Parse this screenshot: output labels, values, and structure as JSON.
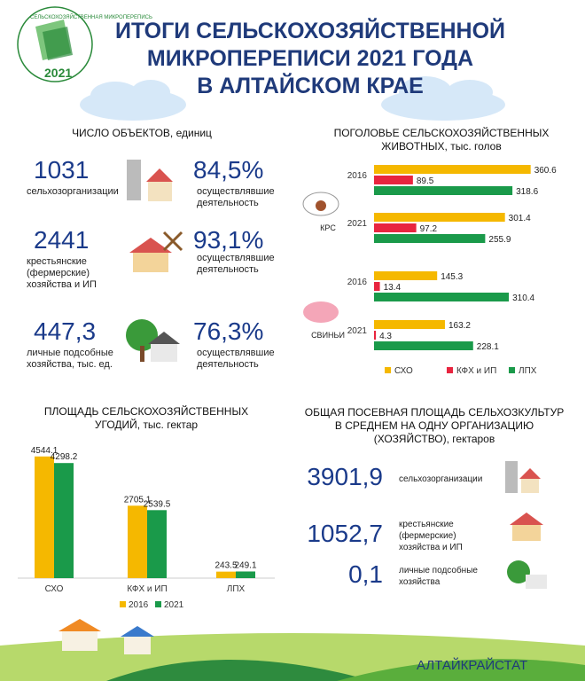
{
  "header": {
    "logo_text": "СЕЛЬСКОХОЗЯЙСТВЕННАЯ МИКРОПЕРЕПИСЬ",
    "logo_year": "2021",
    "title_lines": [
      "ИТОГИ СЕЛЬСКОХОЗЯЙСТВЕННОЙ",
      "МИКРОПЕРЕПИСИ 2021 ГОДА",
      "В АЛТАЙСКОМ КРАЕ"
    ]
  },
  "objects": {
    "title": "ЧИСЛО ОБЪЕКТОВ, единиц",
    "rows": [
      {
        "count": "1031",
        "label_lines": [
          "сельхозорганизации"
        ],
        "share": "84,5%",
        "share_lines": [
          "осуществлявшие",
          "деятельность"
        ]
      },
      {
        "count": "2441",
        "label_lines": [
          "крестьянские",
          "(фермерские)",
          "хозяйства и ИП"
        ],
        "share": "93,1%",
        "share_lines": [
          "осуществлявшие",
          "деятельность"
        ]
      },
      {
        "count": "447,3",
        "label_lines": [
          "личные подсобные",
          "хозяйства, тыс. ед."
        ],
        "share": "76,3%",
        "share_lines": [
          "осуществлявшие",
          "деятельность"
        ]
      }
    ]
  },
  "chart_data": [
    {
      "type": "hbar",
      "title_lines": [
        "ПОГОЛОВЬЕ СЕЛЬСКОХОЗЯЙСТВЕННЫХ",
        "ЖИВОТНЫХ, тыс. голов"
      ],
      "groups": [
        "КРС",
        "СВИНЬИ"
      ],
      "categories": [
        "2016",
        "2021",
        "2016",
        "2021"
      ],
      "series": [
        {
          "name": "СХО",
          "color": "#f5b800",
          "values": [
            360.6,
            301.4,
            145.3,
            163.2
          ]
        },
        {
          "name": "КФХ и ИП",
          "color": "#e8253f",
          "values": [
            89.5,
            97.2,
            13.4,
            4.3
          ]
        },
        {
          "name": "ЛПХ",
          "color": "#1a9a4a",
          "values": [
            318.6,
            255.9,
            310.4,
            228.1
          ]
        }
      ]
    },
    {
      "type": "bar",
      "title_lines": [
        "ПЛОЩАДЬ СЕЛЬСКОХОЗЯЙСТВЕННЫХ",
        "УГОДИЙ, тыс. гектар"
      ],
      "categories": [
        "СХО",
        "КФХ и ИП",
        "ЛПХ"
      ],
      "series": [
        {
          "name": "2016",
          "color": "#f5b800",
          "values": [
            4544.1,
            2705.1,
            243.5
          ]
        },
        {
          "name": "2021",
          "color": "#1a9a4a",
          "values": [
            4298.2,
            2539.5,
            249.1
          ]
        }
      ]
    }
  ],
  "area": {
    "title_lines": [
      "ОБЩАЯ ПОСЕВНАЯ  ПЛОЩАДЬ СЕЛЬХОЗКУЛЬТУР",
      "В СРЕДНЕМ НА ОДНУ ОРГАНИЗАЦИЮ",
      "(ХОЗЯЙСТВО), гектаров"
    ],
    "rows": [
      {
        "value": "3901,9",
        "label_lines": [
          "сельхозорганизации"
        ]
      },
      {
        "value": "1052,7",
        "label_lines": [
          "крестьянские",
          "(фермерские)",
          "хозяйства и ИП"
        ]
      },
      {
        "value": "0,1",
        "label_lines": [
          "личные подсобные",
          "хозяйства"
        ]
      }
    ]
  },
  "footer": {
    "text": "АЛТАЙКРАЙСТАТ"
  }
}
